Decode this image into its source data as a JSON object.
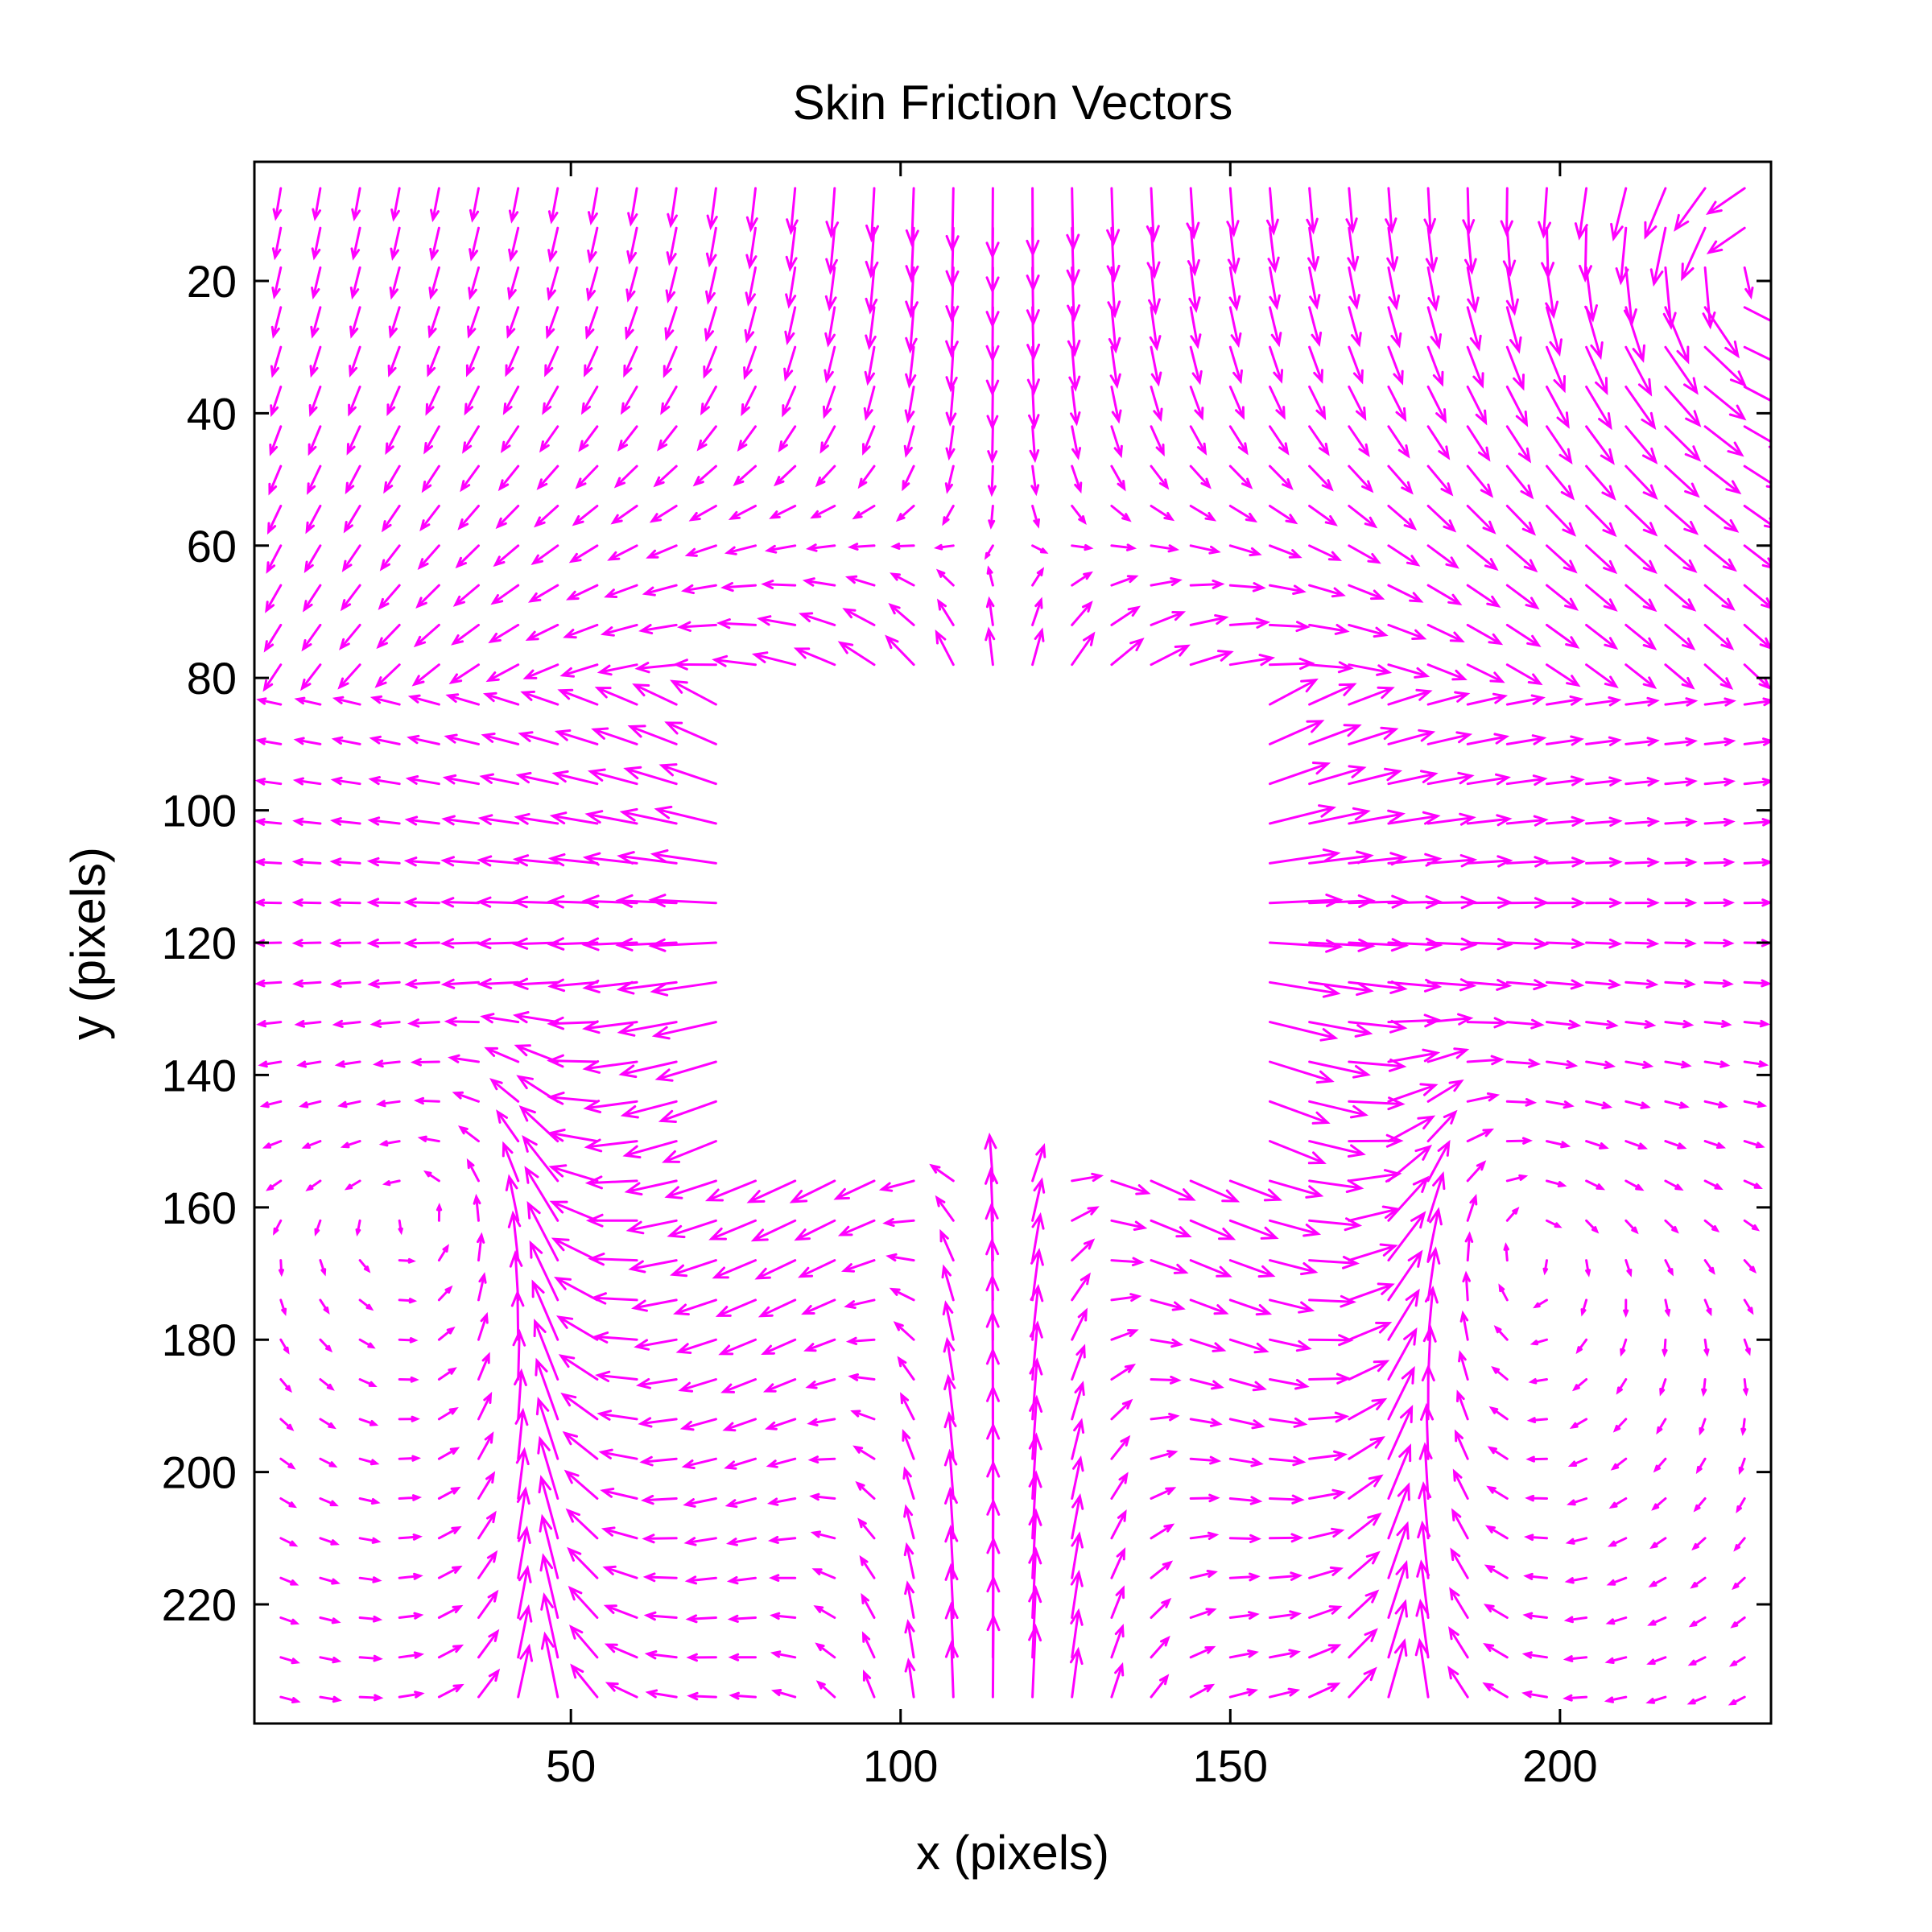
{
  "chart_data": {
    "type": "quiver",
    "title": "Skin Friction Vectors",
    "xlabel": "x (pixels)",
    "ylabel": "y (pixels)",
    "xlim": [
      2,
      232
    ],
    "ylim": [
      2,
      238
    ],
    "y_axis_direction": "down",
    "x_ticks": [
      50,
      100,
      150,
      200
    ],
    "y_ticks": [
      20,
      40,
      60,
      80,
      100,
      120,
      140,
      160,
      180,
      200,
      220
    ],
    "grid": false,
    "legend": "none",
    "vector_color": "#ff00ff",
    "grid_spacing_pixels": 6,
    "masked_region": {
      "x": [
        77,
        152
      ],
      "y": [
        79,
        155
      ]
    },
    "flow_features": {
      "attachment_line_top": {
        "x": 116,
        "y": [
          0,
          79
        ],
        "direction": "down"
      },
      "upstream_attachment_below": {
        "x": 116,
        "y": [
          155,
          238
        ],
        "direction": "up"
      },
      "separation_line_left": {
        "x": 46,
        "y": [
          140,
          238
        ]
      },
      "separation_line_right": {
        "x": 177,
        "y": [
          135,
          238
        ]
      },
      "corner_vortex_top_right": {
        "x": 228,
        "y": 18
      }
    }
  }
}
